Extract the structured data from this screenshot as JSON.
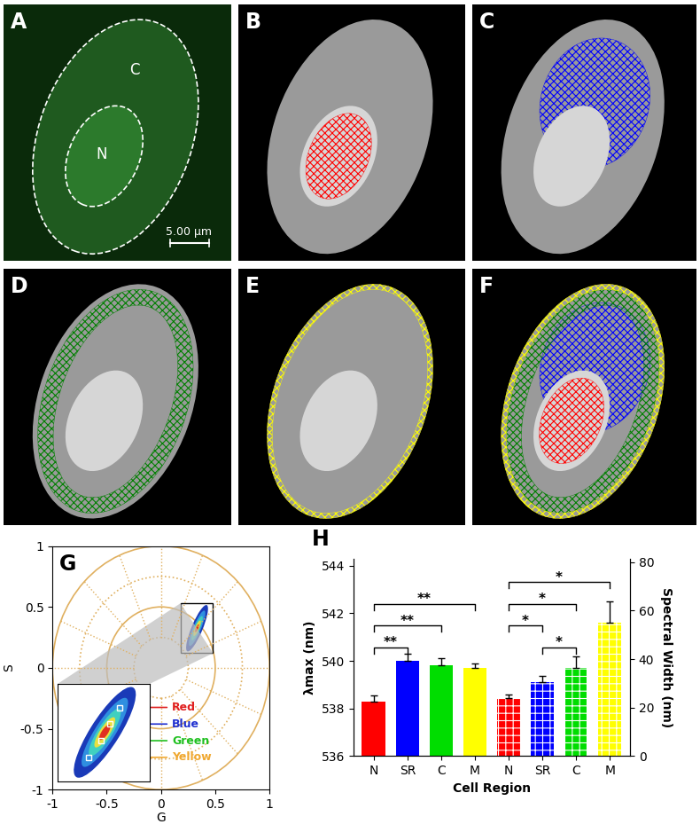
{
  "images": [
    {
      "panel": "A",
      "labels": [
        "C",
        "N"
      ],
      "scale_bar": "5.00 μm",
      "regions": []
    },
    {
      "panel": "B",
      "regions": [
        "red"
      ]
    },
    {
      "panel": "C",
      "regions": [
        "blue"
      ]
    },
    {
      "panel": "D",
      "regions": [
        "green"
      ]
    },
    {
      "panel": "E",
      "regions": [
        "yellow"
      ]
    },
    {
      "panel": "F",
      "regions": [
        "red",
        "blue",
        "green",
        "yellow"
      ]
    }
  ],
  "chart_data": [
    {
      "panel": "G",
      "type": "phasor",
      "xlabel": "G",
      "ylabel": "S",
      "xlim": [
        -1,
        1
      ],
      "ylim": [
        -1,
        1
      ],
      "xticks": [
        -1,
        -0.5,
        0,
        0.5,
        1
      ],
      "yticks": [
        -1,
        -0.5,
        0,
        0.5,
        1
      ],
      "points": [
        {
          "label": "Red",
          "color": "#e02020",
          "g": 0.38,
          "s": 0.43
        },
        {
          "label": "Blue",
          "color": "#2030d0",
          "g": 0.35,
          "s": 0.36
        },
        {
          "label": "Green",
          "color": "#20c020",
          "g": 0.32,
          "s": 0.29
        },
        {
          "label": "Yellow",
          "color": "#f0a830",
          "g": 0.28,
          "s": 0.22
        }
      ]
    },
    {
      "panel": "H",
      "type": "bar",
      "xlabel": "Cell Region",
      "ylabel": "λmax (nm)",
      "y2label": "Spectral Width (nm)",
      "categories": [
        "N",
        "SR",
        "C",
        "M",
        "N",
        "SR",
        "C",
        "M"
      ],
      "ylim": [
        536,
        544.3
      ],
      "yticks": [
        536,
        538,
        540,
        542,
        544
      ],
      "y2lim": [
        0,
        81.5
      ],
      "y2ticks": [
        0,
        20,
        40,
        60,
        80
      ],
      "series": [
        {
          "values": [
            538.3,
            540.0,
            539.8,
            539.7,
            null,
            null,
            null,
            null
          ],
          "errors": [
            0.25,
            0.3,
            0.3,
            0.2,
            null,
            null,
            null,
            null
          ],
          "colors": [
            "#ff0000",
            "#0000ff",
            "#00dd00",
            "#ffff00",
            null,
            null,
            null,
            null
          ]
        },
        {
          "axis": "y2",
          "values": [
            null,
            null,
            null,
            null,
            24,
            30.5,
            36.5,
            55
          ],
          "errors": [
            null,
            null,
            null,
            null,
            1.5,
            2.5,
            4.5,
            9
          ],
          "colors": [
            null,
            null,
            null,
            null,
            "#ff0000",
            "#0000ff",
            "#00dd00",
            "#ffff00"
          ]
        }
      ],
      "significance": [
        {
          "from": 0,
          "to": 1,
          "label": "**"
        },
        {
          "from": 0,
          "to": 2,
          "label": "**"
        },
        {
          "from": 0,
          "to": 3,
          "label": "**"
        },
        {
          "from": 5,
          "to": 6,
          "label": "*"
        },
        {
          "from": 4,
          "to": 5,
          "label": "*"
        },
        {
          "from": 4,
          "to": 6,
          "label": "*"
        },
        {
          "from": 4,
          "to": 7,
          "label": "*"
        }
      ]
    }
  ]
}
